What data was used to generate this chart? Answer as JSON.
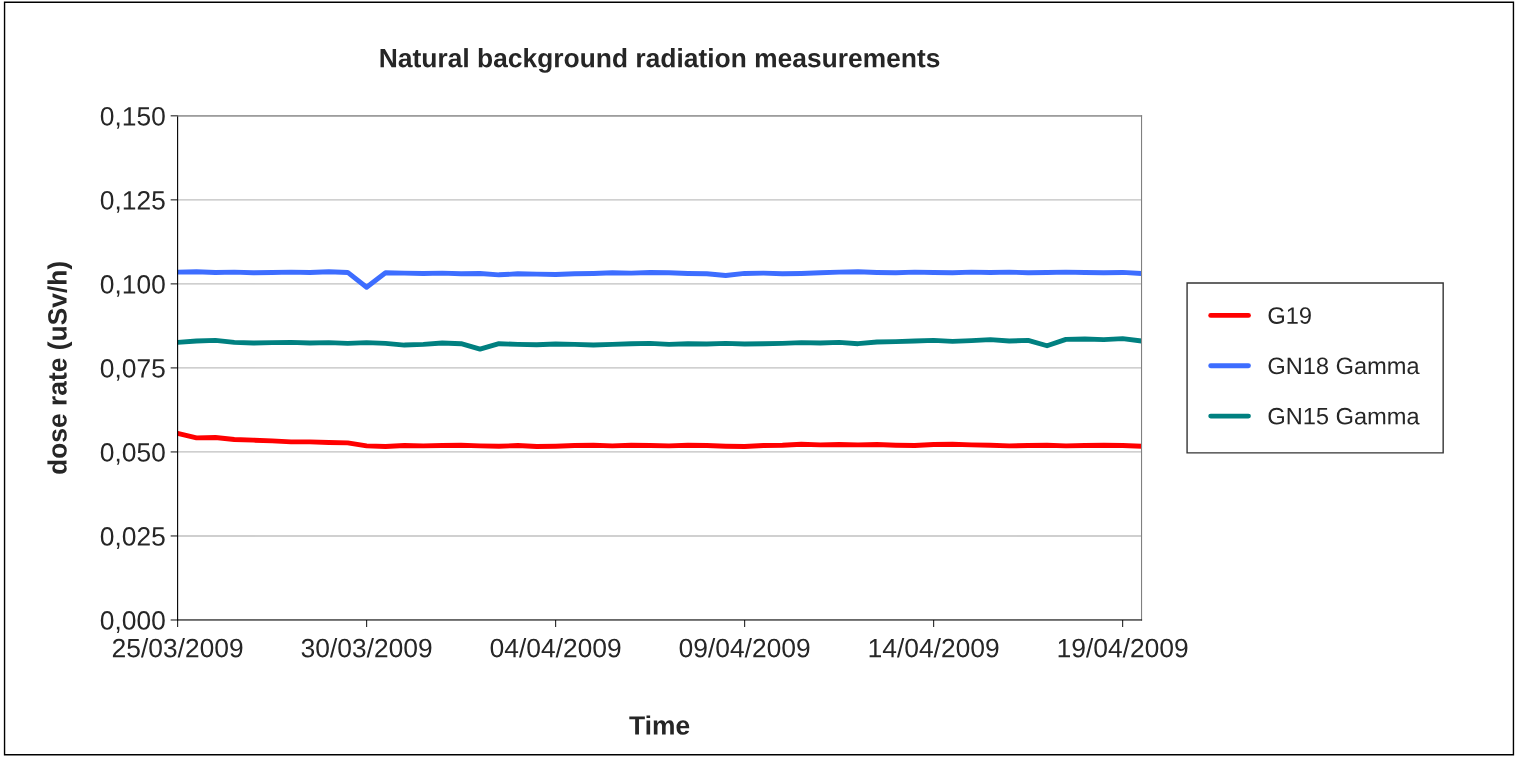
{
  "chart_data": {
    "type": "line",
    "title": "Natural background radiation measurements",
    "xlabel": "Time",
    "ylabel": "dose rate (uSv/h)",
    "x": [
      "2009-03-25T00:00",
      "2009-03-25T12:00",
      "2009-03-26T00:00",
      "2009-03-26T12:00",
      "2009-03-27T00:00",
      "2009-03-27T12:00",
      "2009-03-28T00:00",
      "2009-03-28T12:00",
      "2009-03-29T00:00",
      "2009-03-29T12:00",
      "2009-03-30T00:00",
      "2009-03-30T12:00",
      "2009-03-31T00:00",
      "2009-03-31T12:00",
      "2009-04-01T00:00",
      "2009-04-01T12:00",
      "2009-04-02T00:00",
      "2009-04-02T12:00",
      "2009-04-03T00:00",
      "2009-04-03T12:00",
      "2009-04-04T00:00",
      "2009-04-04T12:00",
      "2009-04-05T00:00",
      "2009-04-05T12:00",
      "2009-04-06T00:00",
      "2009-04-06T12:00",
      "2009-04-07T00:00",
      "2009-04-07T12:00",
      "2009-04-08T00:00",
      "2009-04-08T12:00",
      "2009-04-09T00:00",
      "2009-04-09T12:00",
      "2009-04-10T00:00",
      "2009-04-10T12:00",
      "2009-04-11T00:00",
      "2009-04-11T12:00",
      "2009-04-12T00:00",
      "2009-04-12T12:00",
      "2009-04-13T00:00",
      "2009-04-13T12:00",
      "2009-04-14T00:00",
      "2009-04-14T12:00",
      "2009-04-15T00:00",
      "2009-04-15T12:00",
      "2009-04-16T00:00",
      "2009-04-16T12:00",
      "2009-04-17T00:00",
      "2009-04-17T12:00",
      "2009-04-18T00:00",
      "2009-04-18T12:00",
      "2009-04-19T00:00",
      "2009-04-19T12:00"
    ],
    "series": [
      {
        "name": "G19",
        "color": "#ff0000",
        "values": [
          0.0555,
          0.0542,
          0.0543,
          0.0537,
          0.0535,
          0.0533,
          0.053,
          0.053,
          0.0528,
          0.0527,
          0.0518,
          0.0516,
          0.0519,
          0.0518,
          0.0519,
          0.052,
          0.0518,
          0.0517,
          0.0519,
          0.0516,
          0.0517,
          0.0519,
          0.052,
          0.0518,
          0.052,
          0.0519,
          0.0518,
          0.052,
          0.0519,
          0.0517,
          0.0516,
          0.0519,
          0.052,
          0.0523,
          0.0521,
          0.0522,
          0.0521,
          0.0522,
          0.052,
          0.0519,
          0.0522,
          0.0523,
          0.0521,
          0.052,
          0.0518,
          0.0519,
          0.052,
          0.0518,
          0.0519,
          0.052,
          0.0519,
          0.0517
        ]
      },
      {
        "name": "GN18 Gamma",
        "color": "#3d6dff",
        "values": [
          0.1035,
          0.1036,
          0.1034,
          0.1035,
          0.1033,
          0.1034,
          0.1035,
          0.1034,
          0.1036,
          0.1034,
          0.099,
          0.1033,
          0.1032,
          0.1031,
          0.1032,
          0.103,
          0.1031,
          0.1027,
          0.103,
          0.1029,
          0.1028,
          0.103,
          0.1031,
          0.1033,
          0.1032,
          0.1034,
          0.1033,
          0.1031,
          0.103,
          0.1025,
          0.1031,
          0.1032,
          0.103,
          0.1031,
          0.1033,
          0.1035,
          0.1036,
          0.1034,
          0.1033,
          0.1035,
          0.1034,
          0.1033,
          0.1035,
          0.1034,
          0.1035,
          0.1033,
          0.1034,
          0.1035,
          0.1034,
          0.1033,
          0.1034,
          0.1031
        ]
      },
      {
        "name": "GN15 Gamma",
        "color": "#008080",
        "values": [
          0.0826,
          0.083,
          0.0832,
          0.0826,
          0.0824,
          0.0825,
          0.0826,
          0.0824,
          0.0825,
          0.0823,
          0.0825,
          0.0823,
          0.0818,
          0.082,
          0.0824,
          0.0822,
          0.0806,
          0.0822,
          0.082,
          0.0819,
          0.0821,
          0.082,
          0.0818,
          0.082,
          0.0822,
          0.0823,
          0.082,
          0.0822,
          0.0821,
          0.0823,
          0.0821,
          0.0822,
          0.0823,
          0.0825,
          0.0824,
          0.0826,
          0.0822,
          0.0827,
          0.0828,
          0.083,
          0.0832,
          0.0829,
          0.0831,
          0.0834,
          0.083,
          0.0832,
          0.0816,
          0.0835,
          0.0836,
          0.0834,
          0.0837,
          0.083
        ]
      }
    ],
    "xlim": [
      "2009-03-25",
      "2009-04-19T12:00"
    ],
    "xticks": [
      {
        "value": "2009-03-25",
        "label": "25/03/2009"
      },
      {
        "value": "2009-03-30",
        "label": "30/03/2009"
      },
      {
        "value": "2009-04-04",
        "label": "04/04/2009"
      },
      {
        "value": "2009-04-09",
        "label": "09/04/2009"
      },
      {
        "value": "2009-04-14",
        "label": "14/04/2009"
      },
      {
        "value": "2009-04-19",
        "label": "19/04/2009"
      }
    ],
    "ylim": [
      0,
      0.15
    ],
    "yticks": [
      {
        "value": 0,
        "label": "0,000"
      },
      {
        "value": 0.025,
        "label": "0,025"
      },
      {
        "value": 0.05,
        "label": "0,050"
      },
      {
        "value": 0.075,
        "label": "0,075"
      },
      {
        "value": 0.1,
        "label": "0,100"
      },
      {
        "value": 0.125,
        "label": "0,125"
      },
      {
        "value": 0.15,
        "label": "0,150"
      }
    ],
    "grid": "y",
    "legend": "right",
    "line_style": "solid",
    "marker": "none"
  }
}
